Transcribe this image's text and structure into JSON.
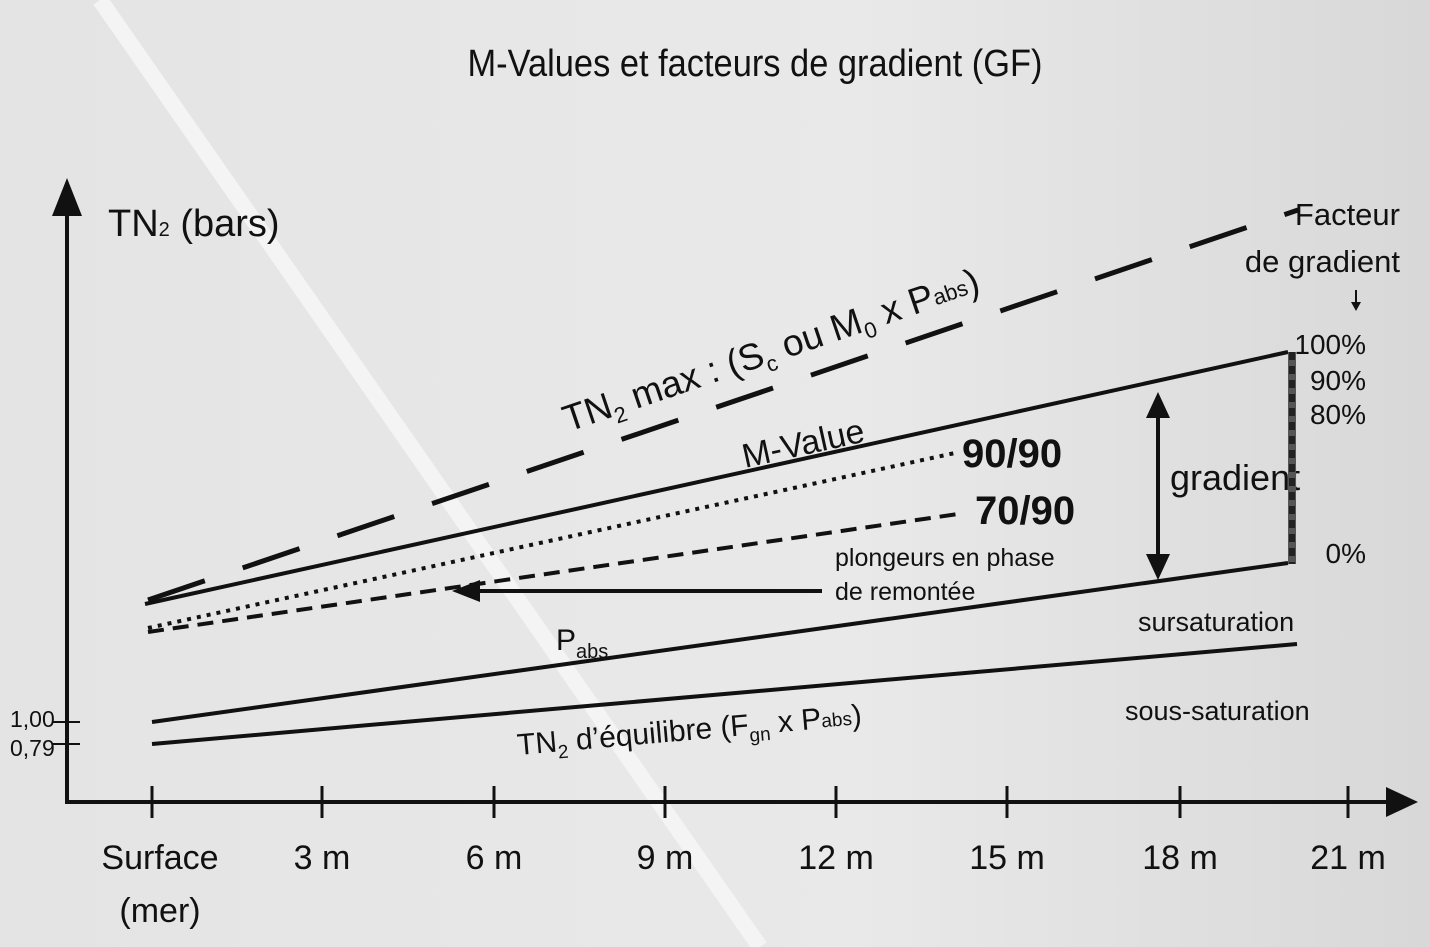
{
  "title": "M-Values et facteurs de gradient (GF)",
  "y_axis": {
    "label_main": "TN",
    "label_sub": "2",
    "label_rest": " (bars)"
  },
  "y_ticks": [
    "1,00",
    "0,79"
  ],
  "x_ticks": [
    {
      "line1": "Surface",
      "line2": "(mer)"
    },
    {
      "line1": "3 m"
    },
    {
      "line1": "6 m"
    },
    {
      "line1": "9 m"
    },
    {
      "line1": "12 m"
    },
    {
      "line1": "15 m"
    },
    {
      "line1": "18 m"
    },
    {
      "line1": "21 m"
    }
  ],
  "labels": {
    "tn2max_a": "TN",
    "tn2max_b": "2",
    "tn2max_c": " max : (S",
    "tn2max_d": "c",
    "tn2max_e": " ou M",
    "tn2max_f": "0",
    "tn2max_g": " x P",
    "tn2max_h": "abs",
    "tn2max_i": ")",
    "mvalue": "M-Value",
    "gf9090": "90/90",
    "gf7090": "70/90",
    "plongeurs_1": "plongeurs en phase",
    "plongeurs_2": "de remontée",
    "pabs_p": "P",
    "pabs_sub": "abs",
    "equil_a": "TN",
    "equil_b": "2",
    "equil_c": " d’équilibre (F",
    "equil_d": "gn",
    "equil_e": " x P",
    "equil_f": "abs",
    "equil_g": ")",
    "sursaturation": "sursaturation",
    "sous_saturation": "sous-saturation",
    "gradient": "gradient",
    "facteur_1": "Facteur",
    "facteur_2": "de gradient"
  },
  "gf_percent": [
    "100%",
    "90%",
    "80%",
    "0%"
  ],
  "colors": {
    "ink": "#111111",
    "background": "#e6e6e6",
    "frame": "#8a8a8a"
  }
}
